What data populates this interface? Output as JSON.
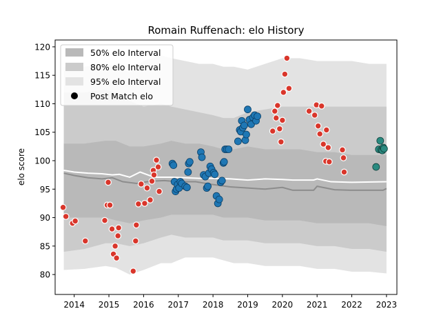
{
  "chart_data": {
    "type": "scatter",
    "title": "Romain Ruffenach: elo History",
    "xlabel": "",
    "ylabel": "elo score",
    "xlim": [
      2013.45,
      2023.3
    ],
    "ylim": [
      76.5,
      121.2
    ],
    "x_ticks": [
      2014,
      2015,
      2016,
      2017,
      2018,
      2019,
      2020,
      2021,
      2022,
      2023
    ],
    "x_tick_labels": [
      "2014",
      "2015",
      "2016",
      "2017",
      "2018",
      "2019",
      "2020",
      "2021",
      "2022",
      "2023"
    ],
    "y_ticks": [
      80,
      85,
      90,
      95,
      100,
      105,
      110,
      115,
      120
    ],
    "y_tick_labels": [
      "80",
      "85",
      "90",
      "95",
      "100",
      "105",
      "110",
      "115",
      "120"
    ],
    "grid": false,
    "legend": {
      "placement": "top-left",
      "entries": [
        "50% elo Interval",
        "80% elo Interval",
        "95% elo Interval",
        "Post Match elo"
      ]
    },
    "colors": {
      "band95": "#e3e3e3",
      "band80": "#cbcbcb",
      "band50": "#b9b9b9",
      "median_line": "#8c8c8c",
      "mean_line": "#ffffff",
      "red_point": "#d9362b",
      "blue_point": "#1f77b4",
      "teal_point": "#2a8a80"
    },
    "bands": {
      "x": [
        2013.7,
        2014.3,
        2014.9,
        2015.2,
        2015.6,
        2016.0,
        2016.5,
        2016.8,
        2017.2,
        2017.6,
        2018.0,
        2018.3,
        2018.6,
        2019.0,
        2019.5,
        2020.0,
        2020.5,
        2021.0,
        2021.5,
        2022.0,
        2022.5,
        2023.0
      ],
      "p2_5": [
        80.8,
        81.0,
        81.5,
        81.2,
        80.0,
        80.8,
        82.0,
        82.0,
        83.0,
        83.0,
        83.0,
        82.5,
        82.0,
        82.0,
        81.5,
        81.5,
        81.5,
        81.0,
        81.0,
        80.5,
        80.5,
        80.2
      ],
      "p10": [
        84.0,
        84.5,
        85.5,
        85.5,
        85.0,
        85.5,
        86.5,
        87.0,
        86.5,
        86.5,
        86.5,
        86.0,
        86.0,
        86.0,
        85.5,
        85.5,
        85.5,
        85.0,
        85.0,
        84.5,
        84.5,
        84.0
      ],
      "p25": [
        90.0,
        90.0,
        90.0,
        89.5,
        89.0,
        89.5,
        90.0,
        90.5,
        90.5,
        90.5,
        90.5,
        90.0,
        90.0,
        90.0,
        89.5,
        89.5,
        89.5,
        89.0,
        89.0,
        89.0,
        89.0,
        88.5
      ],
      "p75": [
        103.0,
        103.0,
        103.5,
        103.5,
        102.5,
        102.5,
        103.0,
        103.5,
        103.0,
        103.0,
        102.5,
        102.0,
        102.0,
        102.5,
        102.0,
        102.0,
        102.0,
        101.5,
        101.5,
        101.0,
        101.0,
        101.0
      ],
      "p90": [
        112.0,
        112.0,
        112.5,
        112.0,
        110.5,
        109.5,
        110.0,
        109.5,
        109.0,
        108.5,
        108.0,
        107.5,
        107.5,
        108.5,
        109.0,
        109.5,
        109.5,
        109.5,
        109.5,
        109.5,
        109.5,
        109.5
      ],
      "p97_5": [
        116.5,
        116.5,
        117.0,
        116.5,
        115.5,
        117.5,
        118.5,
        118.0,
        117.5,
        117.0,
        117.0,
        116.5,
        116.5,
        116.0,
        117.0,
        118.0,
        118.0,
        117.5,
        117.5,
        117.5,
        117.0,
        117.0
      ]
    },
    "median_line": {
      "x": [
        2013.7,
        2014.0,
        2014.4,
        2014.8,
        2015.1,
        2015.4,
        2015.8,
        2016.2,
        2016.6,
        2017.0,
        2017.5,
        2018.0,
        2018.5,
        2019.0,
        2019.5,
        2020.0,
        2020.3,
        2020.9,
        2021.0,
        2021.5,
        2022.0,
        2022.9,
        2023.0
      ],
      "y": [
        97.8,
        97.4,
        97.0,
        96.8,
        97.0,
        96.3,
        96.0,
        96.4,
        96.5,
        96.3,
        96.3,
        95.8,
        95.4,
        95.2,
        95.0,
        95.3,
        94.8,
        94.8,
        95.5,
        94.9,
        94.8,
        94.8,
        95.1
      ]
    },
    "mean_line": {
      "x": [
        2013.7,
        2014.0,
        2014.4,
        2014.8,
        2015.1,
        2015.3,
        2015.6,
        2015.9,
        2016.3,
        2016.8,
        2017.2,
        2017.6,
        2018.0,
        2018.5,
        2019.0,
        2019.5,
        2020.0,
        2020.3,
        2020.9,
        2021.0,
        2021.4,
        2022.0,
        2023.0
      ],
      "y": [
        98.3,
        98.0,
        97.8,
        97.7,
        97.5,
        97.6,
        97.1,
        98.0,
        97.1,
        97.1,
        97.0,
        96.9,
        96.9,
        96.8,
        96.6,
        96.8,
        96.7,
        96.6,
        96.6,
        96.8,
        96.3,
        96.2,
        96.3
      ]
    },
    "series": [
      {
        "name": "Post Match elo",
        "color": "red",
        "x": [
          2013.68,
          2013.76,
          2013.95,
          2014.03,
          2014.32,
          2014.88,
          2014.95,
          2014.98,
          2015.03,
          2015.09,
          2015.13,
          2015.18,
          2015.22,
          2015.26,
          2015.28,
          2015.7,
          2015.77,
          2015.79,
          2015.85,
          2015.93,
          2016.03,
          2016.1,
          2016.19,
          2016.24,
          2016.28,
          2016.37,
          2016.42,
          2016.3
        ],
        "y": [
          91.8,
          90.2,
          89.0,
          89.4,
          85.9,
          89.5,
          92.2,
          96.2,
          92.2,
          88.0,
          83.6,
          85.0,
          82.9,
          86.8,
          88.2,
          80.6,
          85.9,
          88.7,
          92.4,
          95.9,
          92.5,
          95.2,
          93.1,
          96.4,
          98.3,
          100.1,
          98.9,
          97.5
        ]
      },
      {
        "name": "",
        "color": "red",
        "x": [
          2016.45,
          2019.72,
          2019.78,
          2019.82,
          2019.86,
          2019.92,
          2019.96,
          2020.0,
          2020.03,
          2020.07,
          2020.13,
          2020.19,
          2020.77,
          2020.93,
          2020.98,
          2021.03,
          2021.08,
          2021.13,
          2021.18,
          2021.27,
          2021.32,
          2021.73,
          2021.76,
          2021.78
        ],
        "y": [
          94.6,
          105.2,
          108.7,
          107.5,
          109.7,
          105.6,
          103.3,
          107.1,
          112.0,
          115.2,
          118.0,
          112.7,
          108.7,
          108.0,
          109.8,
          106.1,
          104.7,
          109.6,
          102.9,
          105.4,
          102.3,
          101.9,
          100.5,
          98.0
        ]
      },
      {
        "name": "",
        "color": "red",
        "x": [
          2021.25,
          2021.35
        ],
        "y": [
          99.9,
          99.8
        ]
      },
      {
        "name": "",
        "color": "blue",
        "x": [
          2016.83,
          2016.86,
          2016.89,
          2016.92,
          2016.95,
          2016.98,
          2017.02,
          2017.06,
          2017.1,
          2017.2,
          2017.25,
          2017.28,
          2017.3,
          2017.33,
          2017.65,
          2017.68,
          2017.73,
          2017.78,
          2017.82,
          2017.85,
          2017.88,
          2017.92,
          2017.96,
          2018.02,
          2018.05,
          2018.1,
          2018.14,
          2018.18,
          2018.22,
          2018.26,
          2018.3,
          2018.32,
          2018.35,
          2018.4,
          2018.45,
          2018.72,
          2018.77,
          2018.8,
          2018.83,
          2018.86,
          2018.9,
          2018.93,
          2018.96,
          2019.0,
          2019.05,
          2019.1,
          2019.15,
          2019.2,
          2019.24,
          2019.28
        ],
        "y": [
          99.5,
          99.2,
          96.3,
          94.6,
          95.0,
          95.8,
          95.2,
          96.3,
          96.0,
          95.5,
          95.3,
          98.0,
          99.5,
          99.8,
          101.5,
          100.6,
          97.5,
          97.2,
          95.2,
          95.5,
          97.8,
          99.0,
          98.5,
          97.9,
          97.6,
          93.8,
          92.5,
          93.2,
          96.2,
          96.5,
          99.6,
          99.8,
          102.0,
          102.0,
          102.0,
          103.4,
          105.4,
          105.1,
          107.0,
          105.8,
          106.2,
          103.6,
          104.6,
          109.0,
          107.2,
          106.4,
          107.6,
          108.0,
          107.0,
          107.8
        ]
      },
      {
        "name": "",
        "color": "teal",
        "x": [
          2022.7,
          2022.78,
          2022.82,
          2022.85,
          2022.88,
          2022.91,
          2022.93
        ],
        "y": [
          98.9,
          102.0,
          103.5,
          101.9,
          101.8,
          102.3,
          102.1
        ]
      }
    ]
  }
}
